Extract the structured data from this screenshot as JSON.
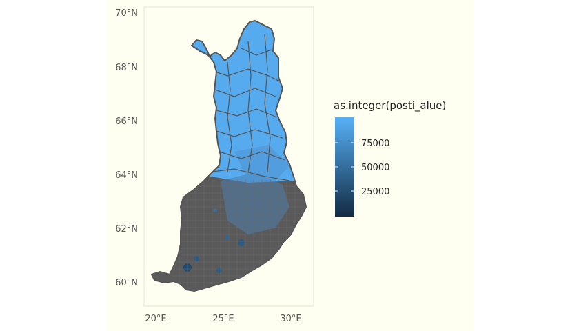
{
  "chart_data": {
    "type": "map",
    "region": "Finland",
    "fill_variable": "as.integer(posti_alue)",
    "y_ticks": [
      "60°N",
      "62°N",
      "64°N",
      "66°N",
      "68°N",
      "70°N"
    ],
    "x_ticks": [
      "20°E",
      "25°E",
      "30°E"
    ],
    "legend": {
      "title": "as.integer(posti_alue)",
      "breaks": [
        25000,
        50000,
        75000
      ],
      "break_labels": [
        "25000",
        "50000",
        "75000"
      ],
      "range": [
        0,
        99999
      ],
      "low_color": "#132B43",
      "high_color": "#56B1F7"
    },
    "colors": {
      "panel_background": "#fefff0",
      "boundary_line": "#555555",
      "north_fill": "#56aaee",
      "south_fill": "#5a5a5a"
    }
  }
}
